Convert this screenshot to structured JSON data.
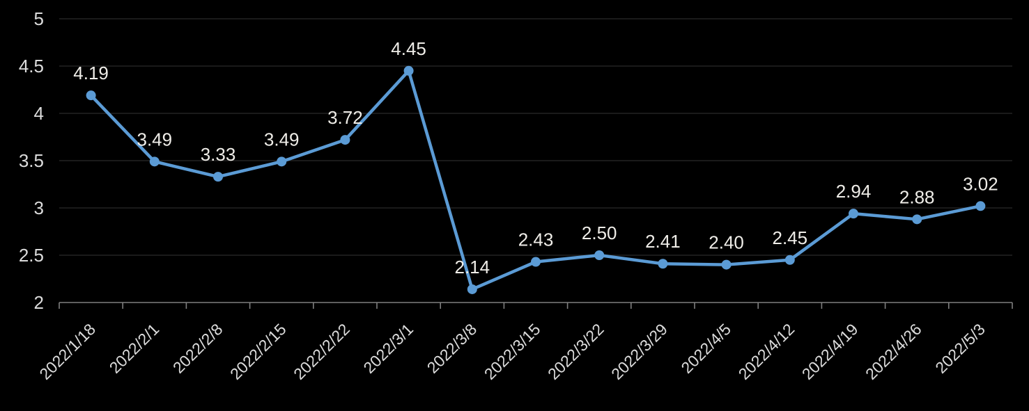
{
  "chart_data": {
    "type": "line",
    "title": "",
    "xlabel": "",
    "ylabel": "",
    "categories": [
      "2022/1/18",
      "2022/2/1",
      "2022/2/8",
      "2022/2/15",
      "2022/2/22",
      "2022/3/1",
      "2022/3/8",
      "2022/3/15",
      "2022/3/22",
      "2022/3/29",
      "2022/4/5",
      "2022/4/12",
      "2022/4/19",
      "2022/4/26",
      "2022/5/3"
    ],
    "series": [
      {
        "name": "value",
        "values": [
          4.19,
          3.49,
          3.33,
          3.49,
          3.72,
          4.45,
          2.14,
          2.43,
          2.5,
          2.41,
          2.4,
          2.45,
          2.94,
          2.88,
          3.02
        ],
        "value_labels": [
          "4.19",
          "3.49",
          "3.33",
          "3.49",
          "3.72",
          "4.45",
          "2.14",
          "2.43",
          "2.50",
          "2.41",
          "2.40",
          "2.45",
          "2.94",
          "2.88",
          "3.02"
        ]
      }
    ],
    "ylim": [
      2,
      5
    ],
    "ytick_labels": [
      "2",
      "2.5",
      "3",
      "3.5",
      "4",
      "4.5",
      "5"
    ],
    "x_tick_rotation_deg": 45,
    "grid": true,
    "legend_position": "none",
    "colors": {
      "background": "#000000",
      "line": "#5B9BD5",
      "marker": "#5B9BD5",
      "gridline": "#232323",
      "axis": "#7F7F7F",
      "axis_tick_label": "#DCDCDC",
      "data_label": "#EFEDE8"
    }
  }
}
